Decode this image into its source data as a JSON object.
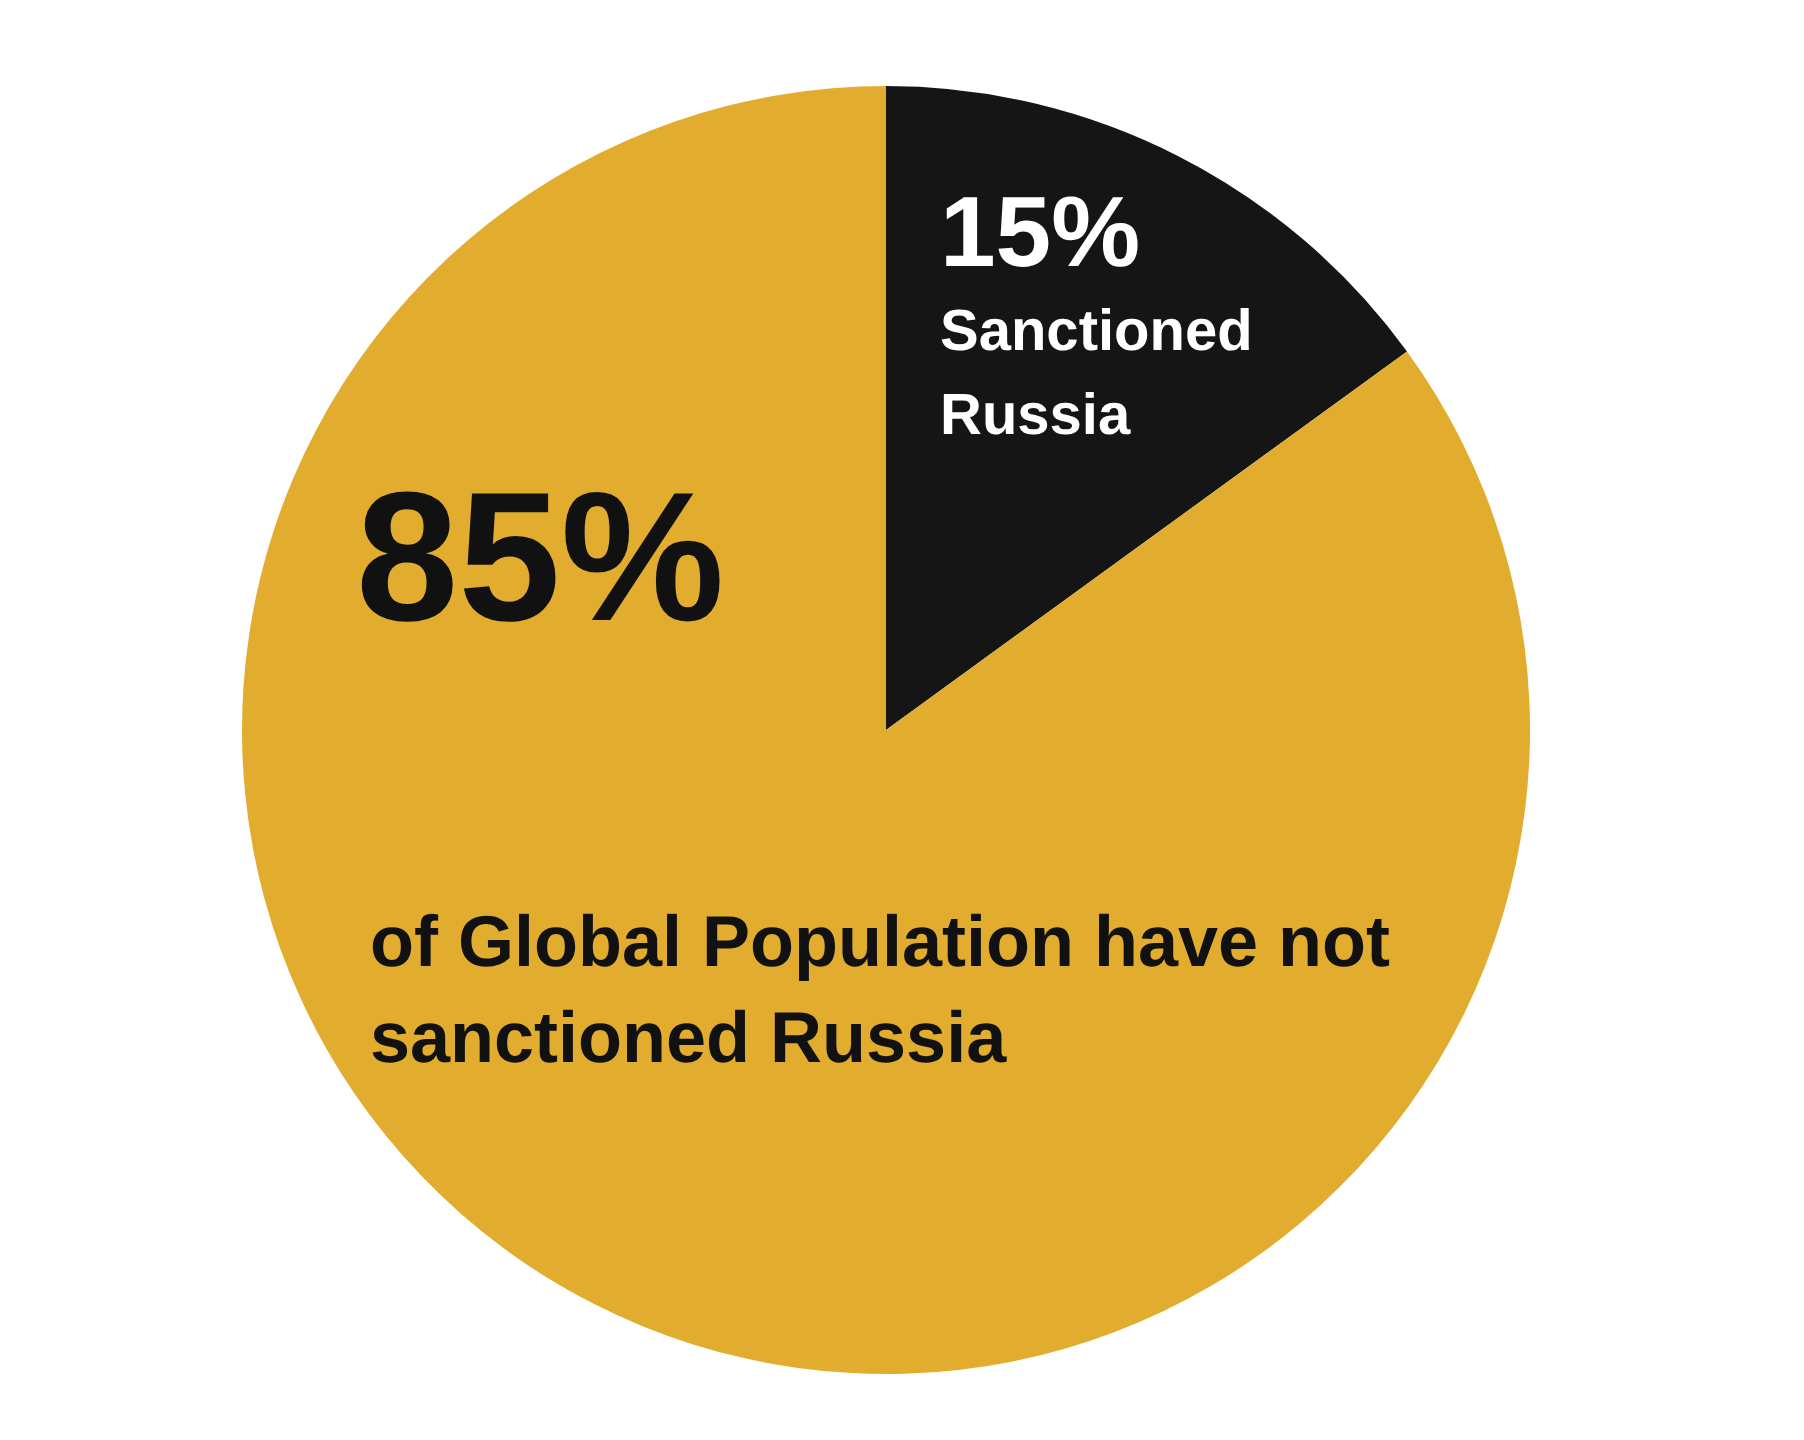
{
  "chart_data": {
    "type": "pie",
    "categories": [
      "Sanctioned Russia",
      "of Global Population have not sanctioned Russia"
    ],
    "values": [
      15,
      85
    ],
    "value_labels": [
      "15%",
      "85%"
    ],
    "colors": [
      "#151515",
      "#e2ad2e"
    ],
    "legend": false
  }
}
